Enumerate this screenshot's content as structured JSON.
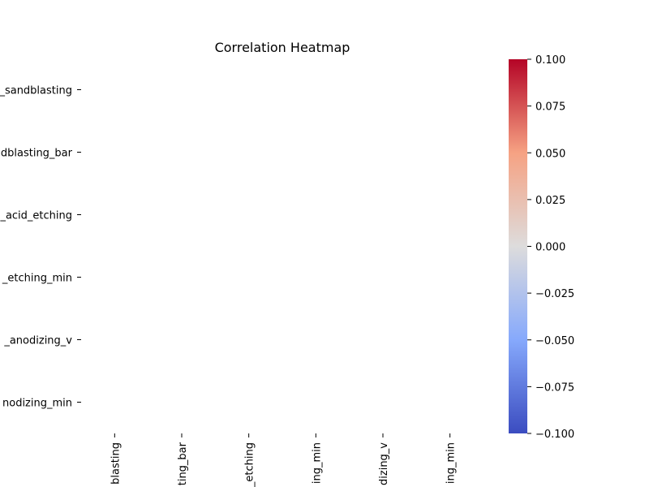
{
  "chart_data": {
    "type": "heatmap",
    "title": "Correlation Heatmap",
    "xlabel": "",
    "ylabel": "",
    "row_labels": [
      "_sandblasting",
      "dblasting_bar",
      "_acid_etching",
      "_etching_min",
      "_anodizing_v",
      "nodizing_min"
    ],
    "column_labels": [
      "blasting",
      "ting_bar",
      "_etching",
      "ing_min",
      "dizing_v",
      "ing_min"
    ],
    "values": [],
    "colormap": "coolwarm",
    "colorbar": {
      "range": [
        -0.1,
        0.1
      ],
      "ticks": [
        0.1,
        0.075,
        0.05,
        0.025,
        0.0,
        -0.025,
        -0.05,
        -0.075,
        -0.1
      ],
      "tick_labels": [
        "0.100",
        "0.075",
        "0.050",
        "0.025",
        "0.000",
        "−0.025",
        "−0.050",
        "−0.075",
        "−0.100"
      ],
      "stops": [
        {
          "offset": 0,
          "color": "#b40426"
        },
        {
          "offset": 0.25,
          "color": "#f6a283"
        },
        {
          "offset": 0.5,
          "color": "#dddcdc"
        },
        {
          "offset": 0.75,
          "color": "#86a9fc"
        },
        {
          "offset": 1,
          "color": "#3b4cc0"
        }
      ]
    },
    "grid": false
  }
}
